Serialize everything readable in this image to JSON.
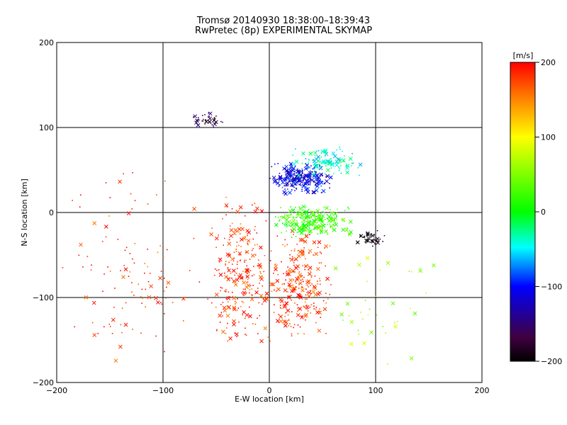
{
  "chart_data": {
    "type": "scatter",
    "title": "Tromsø 20140930 18:38:00–18:39:43",
    "subtitle": "RwPretec (8p) EXPERIMENTAL SKYMAP",
    "xlabel": "E-W location [km]",
    "ylabel": "N-S location [km]",
    "xlim": [
      -200,
      200
    ],
    "ylim": [
      -200,
      200
    ],
    "xticks": [
      -200,
      -100,
      0,
      100,
      200
    ],
    "yticks": [
      -200,
      -100,
      0,
      100,
      200
    ],
    "grid": true,
    "marker_styles": [
      "small dot",
      "x"
    ],
    "colorbar": {
      "label": "[m/s]",
      "range": [
        -200,
        200
      ],
      "ticks": [
        200,
        100,
        0,
        -100,
        -200
      ],
      "colors": [
        "#000000",
        "#400040",
        "#0000ff",
        "#00ffff",
        "#00ff00",
        "#ffff00",
        "#ff8000",
        "#ff0000"
      ]
    },
    "clusters": [
      {
        "region": "south-west of center",
        "x_range": [
          -60,
          10
        ],
        "y_range": [
          -170,
          20
        ],
        "velocity": 180,
        "density": "high"
      },
      {
        "region": "south of center",
        "x_range": [
          0,
          60
        ],
        "y_range": [
          -150,
          -20
        ],
        "velocity": 180,
        "density": "high"
      },
      {
        "region": "west",
        "x_range": [
          -200,
          -60
        ],
        "y_range": [
          -200,
          60
        ],
        "velocity": 180,
        "density": "medium"
      },
      {
        "region": "north-east core",
        "x_range": [
          0,
          60
        ],
        "y_range": [
          20,
          60
        ],
        "velocity": -110,
        "density": "high"
      },
      {
        "region": "center-east mixed",
        "x_range": [
          0,
          80
        ],
        "y_range": [
          -30,
          10
        ],
        "velocity": 20,
        "density": "high"
      },
      {
        "region": "north cyan band",
        "x_range": [
          20,
          90
        ],
        "y_range": [
          40,
          80
        ],
        "velocity": -40,
        "density": "medium"
      },
      {
        "region": "east black cluster",
        "x_range": [
          80,
          110
        ],
        "y_range": [
          -40,
          -20
        ],
        "velocity": -200,
        "density": "low"
      },
      {
        "region": "upper-left arc",
        "x_range": [
          -80,
          -40
        ],
        "y_range": [
          100,
          120
        ],
        "velocity": -170,
        "density": "low"
      },
      {
        "region": "south-east scatter",
        "x_range": [
          60,
          160
        ],
        "y_range": [
          -190,
          -40
        ],
        "velocity": 60,
        "density": "low"
      }
    ]
  }
}
